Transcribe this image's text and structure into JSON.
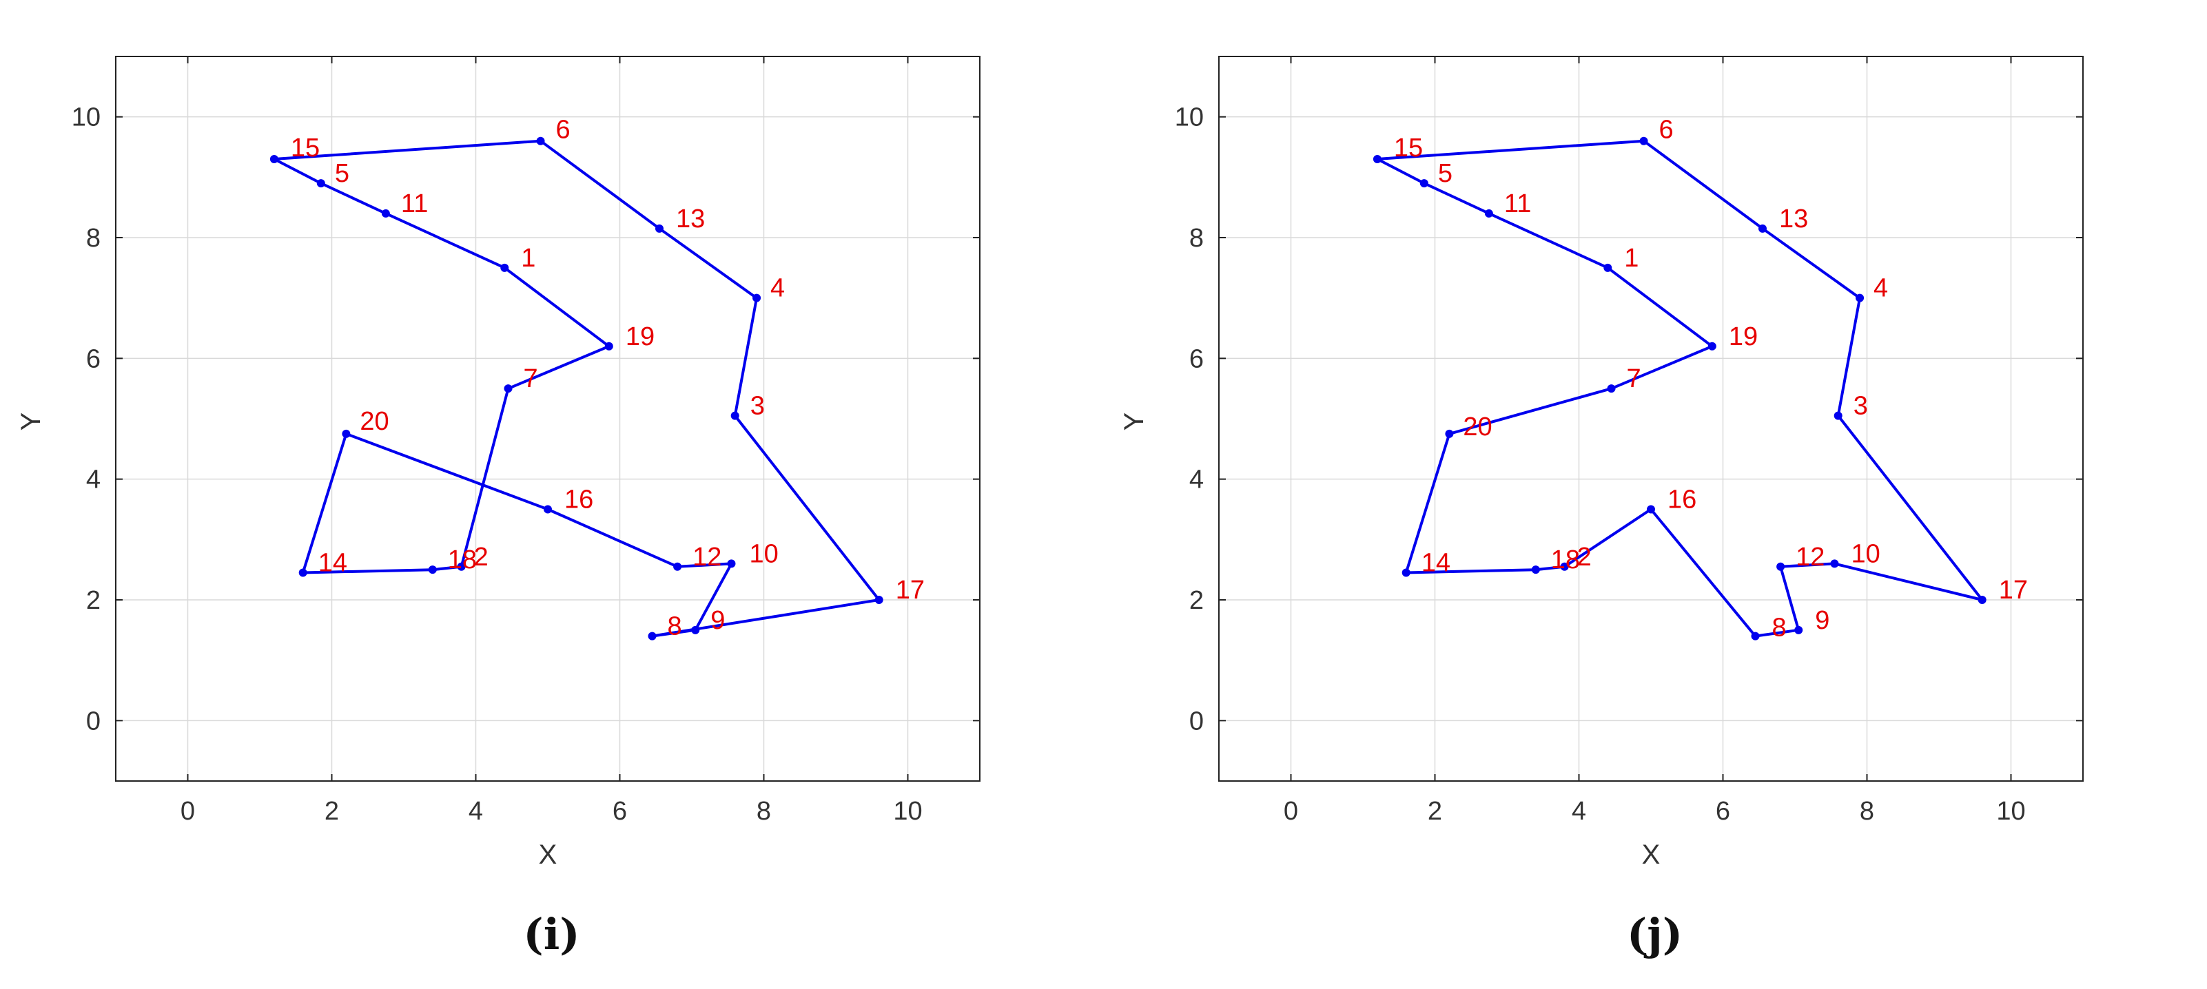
{
  "colors": {
    "route": "#0000ee",
    "label": "#e60000",
    "grid": "#d9d9d9",
    "axes": "#222222"
  },
  "chart_data": [
    {
      "type": "line",
      "caption": "(i)",
      "xlabel": "X",
      "ylabel": "Y",
      "xlim": [
        -1,
        11
      ],
      "ylim": [
        -1,
        11
      ],
      "xticks": [
        0,
        2,
        4,
        6,
        8,
        10
      ],
      "yticks": [
        0,
        2,
        4,
        6,
        8,
        10
      ],
      "grid": true,
      "points": [
        {
          "id": "1",
          "x": 4.4,
          "y": 7.5
        },
        {
          "id": "2",
          "x": 3.8,
          "y": 2.55
        },
        {
          "id": "3",
          "x": 7.6,
          "y": 5.05
        },
        {
          "id": "4",
          "x": 7.9,
          "y": 7.0
        },
        {
          "id": "5",
          "x": 1.85,
          "y": 8.9
        },
        {
          "id": "6",
          "x": 4.9,
          "y": 9.6
        },
        {
          "id": "7",
          "x": 4.45,
          "y": 5.5
        },
        {
          "id": "8",
          "x": 6.45,
          "y": 1.4
        },
        {
          "id": "9",
          "x": 7.05,
          "y": 1.5
        },
        {
          "id": "10",
          "x": 7.55,
          "y": 2.6
        },
        {
          "id": "11",
          "x": 2.75,
          "y": 8.4
        },
        {
          "id": "12",
          "x": 6.8,
          "y": 2.55
        },
        {
          "id": "13",
          "x": 6.55,
          "y": 8.15
        },
        {
          "id": "14",
          "x": 1.6,
          "y": 2.45
        },
        {
          "id": "15",
          "x": 1.2,
          "y": 9.3
        },
        {
          "id": "16",
          "x": 5.0,
          "y": 3.5
        },
        {
          "id": "17",
          "x": 9.6,
          "y": 2.0
        },
        {
          "id": "18",
          "x": 3.4,
          "y": 2.5
        },
        {
          "id": "19",
          "x": 5.85,
          "y": 6.2
        },
        {
          "id": "20",
          "x": 2.2,
          "y": 4.75
        }
      ],
      "route": [
        "15",
        "6",
        "13",
        "4",
        "3",
        "17",
        "8",
        "9",
        "10",
        "12",
        "16",
        "20",
        "14",
        "18",
        "2",
        "7",
        "19",
        "1",
        "11",
        "5",
        "15"
      ]
    },
    {
      "type": "line",
      "caption": "(j)",
      "xlabel": "X",
      "ylabel": "Y",
      "xlim": [
        -1,
        11
      ],
      "ylim": [
        -1,
        11
      ],
      "xticks": [
        0,
        2,
        4,
        6,
        8,
        10
      ],
      "yticks": [
        0,
        2,
        4,
        6,
        8,
        10
      ],
      "grid": true,
      "points": [
        {
          "id": "1",
          "x": 4.4,
          "y": 7.5
        },
        {
          "id": "2",
          "x": 3.8,
          "y": 2.55
        },
        {
          "id": "3",
          "x": 7.6,
          "y": 5.05
        },
        {
          "id": "4",
          "x": 7.9,
          "y": 7.0
        },
        {
          "id": "5",
          "x": 1.85,
          "y": 8.9
        },
        {
          "id": "6",
          "x": 4.9,
          "y": 9.6
        },
        {
          "id": "7",
          "x": 4.45,
          "y": 5.5
        },
        {
          "id": "8",
          "x": 6.45,
          "y": 1.4
        },
        {
          "id": "9",
          "x": 7.05,
          "y": 1.5
        },
        {
          "id": "10",
          "x": 7.55,
          "y": 2.6
        },
        {
          "id": "11",
          "x": 2.75,
          "y": 8.4
        },
        {
          "id": "12",
          "x": 6.8,
          "y": 2.55
        },
        {
          "id": "13",
          "x": 6.55,
          "y": 8.15
        },
        {
          "id": "14",
          "x": 1.6,
          "y": 2.45
        },
        {
          "id": "15",
          "x": 1.2,
          "y": 9.3
        },
        {
          "id": "16",
          "x": 5.0,
          "y": 3.5
        },
        {
          "id": "17",
          "x": 9.6,
          "y": 2.0
        },
        {
          "id": "18",
          "x": 3.4,
          "y": 2.5
        },
        {
          "id": "19",
          "x": 5.85,
          "y": 6.2
        },
        {
          "id": "20",
          "x": 2.2,
          "y": 4.75
        }
      ],
      "route": [
        "15",
        "6",
        "13",
        "4",
        "3",
        "17",
        "10",
        "12",
        "9",
        "8",
        "16",
        "2",
        "18",
        "14",
        "20",
        "7",
        "19",
        "1",
        "11",
        "5",
        "15"
      ]
    }
  ]
}
